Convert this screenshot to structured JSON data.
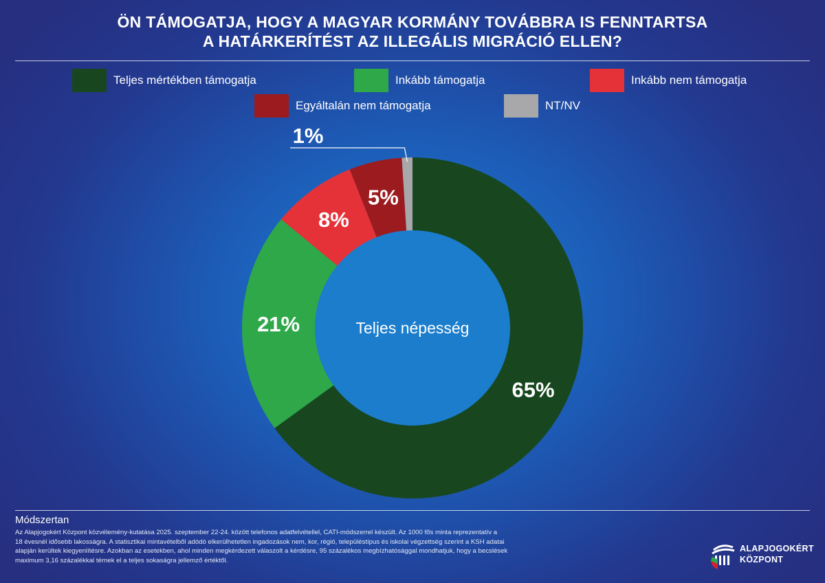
{
  "title_line1": "ÖN TÁMOGATJA, HOGY A MAGYAR KORMÁNY TOVÁBBRA IS FENNTARTSA",
  "title_line2": "A HATÁRKERÍTÉST AZ ILLEGÁLIS MIGRÁCIÓ ELLEN?",
  "chart_data": {
    "type": "pie",
    "variant": "donut",
    "center_label": "Teljes népesség",
    "legend_placement": "top",
    "series": [
      {
        "name": "Teljes mértékben támogatja",
        "value": 65,
        "label": "65%",
        "color": "#18471f"
      },
      {
        "name": "Inkább támogatja",
        "value": 21,
        "label": "21%",
        "color": "#2fa84a"
      },
      {
        "name": "Inkább nem támogatja",
        "value": 8,
        "label": "8%",
        "color": "#e53238"
      },
      {
        "name": "Egyáltalán nem támogatja",
        "value": 5,
        "label": "5%",
        "color": "#9b1b1f"
      },
      {
        "name": "NT/NV",
        "value": 1,
        "label": "1%",
        "color": "#a8a8aa"
      }
    ]
  },
  "methodology": {
    "heading": "Módszertan",
    "line1": "Az Alapjogokért Központ közvélemény-kutatása 2025. szeptember 22-24. között telefonos adatfelvétellel, CATI-módszerrel készült. Az 1000 fős minta reprezentatív a",
    "line2": "18 évesnél idősebb lakosságra. A statisztikai mintavételből adódó elkerülhetetlen ingadozások nem, kor, régió, településtípus és iskolai végzettség szerint a KSH adatai",
    "line3": "alapján kerültek kiegyenlítésre. Azokban az esetekben, ahol minden megkérdezett válaszolt a kérdésre, 95 százalékos megbízhatósággal mondhatjuk, hogy a becslések",
    "line4": "maximum 3,16 százalékkal térnek el a teljes sokaságra jellemző értéktől."
  },
  "logo": {
    "line1": "ALAPJOGOKÉRT",
    "line2": "KÖZPONT"
  }
}
